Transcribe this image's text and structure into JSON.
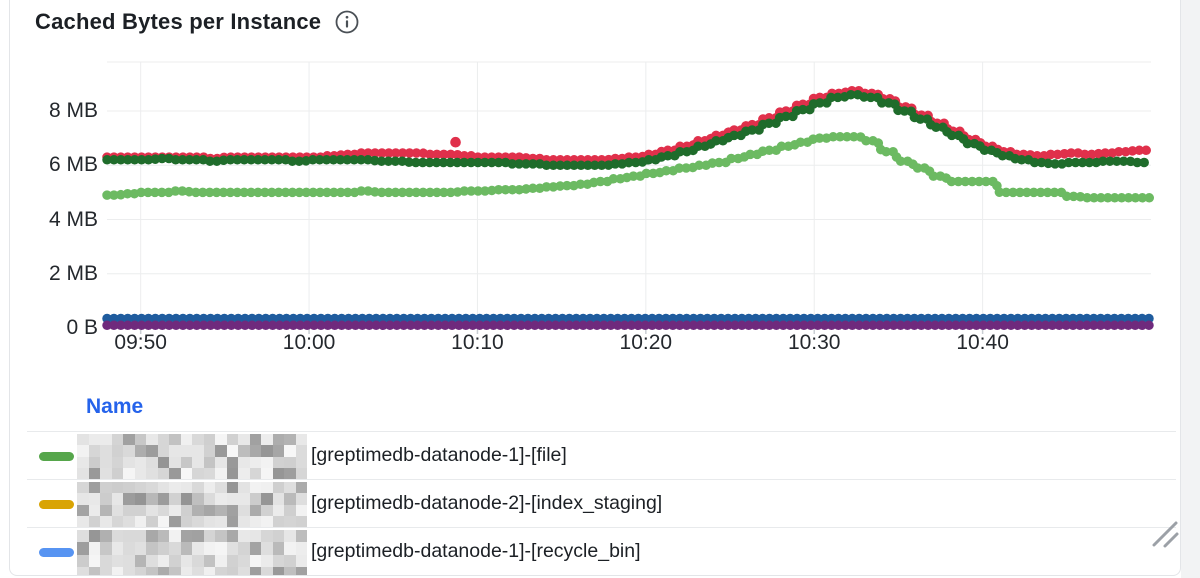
{
  "panel": {
    "title": "Cached Bytes per Instance",
    "info_icon": "info-icon"
  },
  "colors": {
    "card_border": "#e3e5e8",
    "grid": "#ecedee",
    "axis_tick": "#c9ced3",
    "text": "#24282d",
    "legend_header": "#2563eb",
    "background_gutter": "#f2f3f4"
  },
  "legend": {
    "header": "Name",
    "rows": [
      {
        "color": "#56a64b",
        "label": "[greptimedb-datanode-1]-[file]",
        "redacted_prefix": true
      },
      {
        "color": "#d9a404",
        "label": "[greptimedb-datanode-2]-[index_staging]",
        "redacted_prefix": true
      },
      {
        "color": "#5794f2",
        "label": "[greptimedb-datanode-1]-[recycle_bin]",
        "redacted_prefix": true
      }
    ]
  },
  "chart_data": {
    "type": "line",
    "title": "Cached Bytes per Instance",
    "ylabel": "",
    "xlabel": "",
    "unit": "MB",
    "ylim": [
      0,
      9.8
    ],
    "grid": true,
    "legend_position": "bottom-table",
    "x_ticks": [
      {
        "t": 2,
        "label": "09:50"
      },
      {
        "t": 12,
        "label": "10:00"
      },
      {
        "t": 22,
        "label": "10:10"
      },
      {
        "t": 32,
        "label": "10:20"
      },
      {
        "t": 42,
        "label": "10:30"
      },
      {
        "t": 52,
        "label": "10:40"
      }
    ],
    "y_ticks": [
      {
        "v": 8,
        "label": "8 MB"
      },
      {
        "v": 6,
        "label": "6 MB"
      },
      {
        "v": 4,
        "label": "4 MB"
      },
      {
        "v": 2,
        "label": "2 MB"
      },
      {
        "v": 0,
        "label": "0 B"
      }
    ],
    "t_domain": [
      0,
      62
    ],
    "t_note": "minutes; t=0 is approx 09:48, 1 value per minute",
    "series": [
      {
        "name": "red-series",
        "color": "#e0304b",
        "values": [
          6.3,
          6.3,
          6.3,
          6.3,
          6.3,
          6.3,
          6.25,
          6.3,
          6.3,
          6.3,
          6.3,
          6.3,
          6.3,
          6.35,
          6.4,
          6.45,
          6.45,
          6.45,
          6.45,
          6.4,
          6.4,
          6.35,
          6.3,
          6.3,
          6.3,
          6.25,
          6.2,
          6.2,
          6.2,
          6.2,
          6.25,
          6.3,
          6.4,
          6.55,
          6.7,
          6.9,
          7.1,
          7.3,
          7.5,
          7.75,
          8.0,
          8.25,
          8.5,
          8.65,
          8.75,
          8.65,
          8.45,
          8.15,
          7.85,
          7.55,
          7.25,
          6.95,
          6.7,
          6.5,
          6.4,
          6.35,
          6.4,
          6.45,
          6.4,
          6.45,
          6.5,
          6.55,
          6.6
        ]
      },
      {
        "name": "dark-green-series",
        "color": "#1f6c2b",
        "values": [
          6.2,
          6.2,
          6.2,
          6.25,
          6.2,
          6.2,
          6.15,
          6.2,
          6.2,
          6.2,
          6.2,
          6.15,
          6.2,
          6.2,
          6.2,
          6.2,
          6.15,
          6.15,
          6.1,
          6.1,
          6.1,
          6.1,
          6.1,
          6.1,
          6.05,
          6.05,
          6.0,
          6.0,
          6.0,
          6.0,
          6.05,
          6.1,
          6.2,
          6.35,
          6.5,
          6.7,
          6.9,
          7.1,
          7.3,
          7.55,
          7.8,
          8.05,
          8.3,
          8.5,
          8.6,
          8.5,
          8.3,
          8.0,
          7.7,
          7.4,
          7.1,
          6.8,
          6.55,
          6.35,
          6.2,
          6.1,
          6.05,
          6.1,
          6.1,
          6.15,
          6.15,
          6.1,
          6.1
        ]
      },
      {
        "name": "light-green-series",
        "color": "#6cba62",
        "values": [
          4.9,
          4.95,
          5.0,
          5.0,
          5.05,
          5.0,
          5.0,
          5.0,
          5.0,
          5.0,
          5.0,
          5.0,
          5.0,
          5.0,
          5.0,
          5.05,
          5.0,
          5.0,
          5.0,
          5.0,
          5.0,
          5.05,
          5.05,
          5.1,
          5.1,
          5.15,
          5.2,
          5.25,
          5.3,
          5.4,
          5.5,
          5.6,
          5.7,
          5.8,
          5.9,
          6.0,
          6.1,
          6.25,
          6.4,
          6.55,
          6.7,
          6.85,
          7.0,
          7.05,
          7.05,
          6.9,
          6.5,
          6.15,
          5.9,
          5.6,
          5.4,
          5.4,
          5.4,
          5.0,
          5.0,
          5.0,
          5.0,
          4.85,
          4.8,
          4.8,
          4.8,
          4.8,
          4.8
        ]
      },
      {
        "name": "navy-series",
        "color": "#1f5c9e",
        "const": 0.35
      },
      {
        "name": "purple-series",
        "color": "#6f2a7d",
        "const": 0.1
      }
    ],
    "outlier_point": {
      "series": "red-series",
      "t": 20.7,
      "value": 6.85,
      "color": "#e0304b"
    }
  }
}
